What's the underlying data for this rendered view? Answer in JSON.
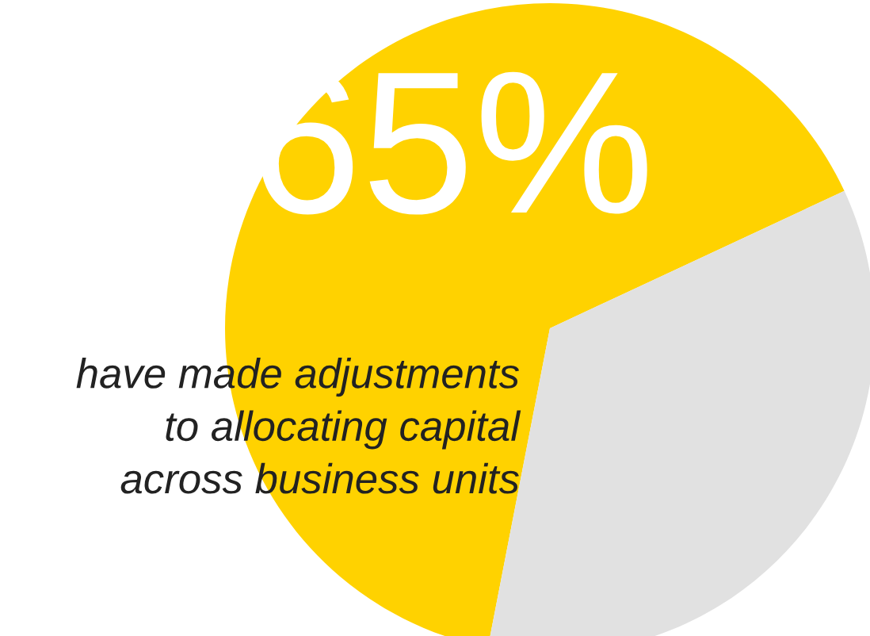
{
  "chart_data": {
    "type": "pie",
    "categories": [
      null,
      null
    ],
    "values": [
      65,
      35
    ],
    "colors": [
      "#ffd200",
      "#e1e1e1"
    ],
    "value_labels": [
      "65%",
      null
    ],
    "annotations": [
      "have made adjustments\nto allocating capital\nacross business units"
    ]
  }
}
